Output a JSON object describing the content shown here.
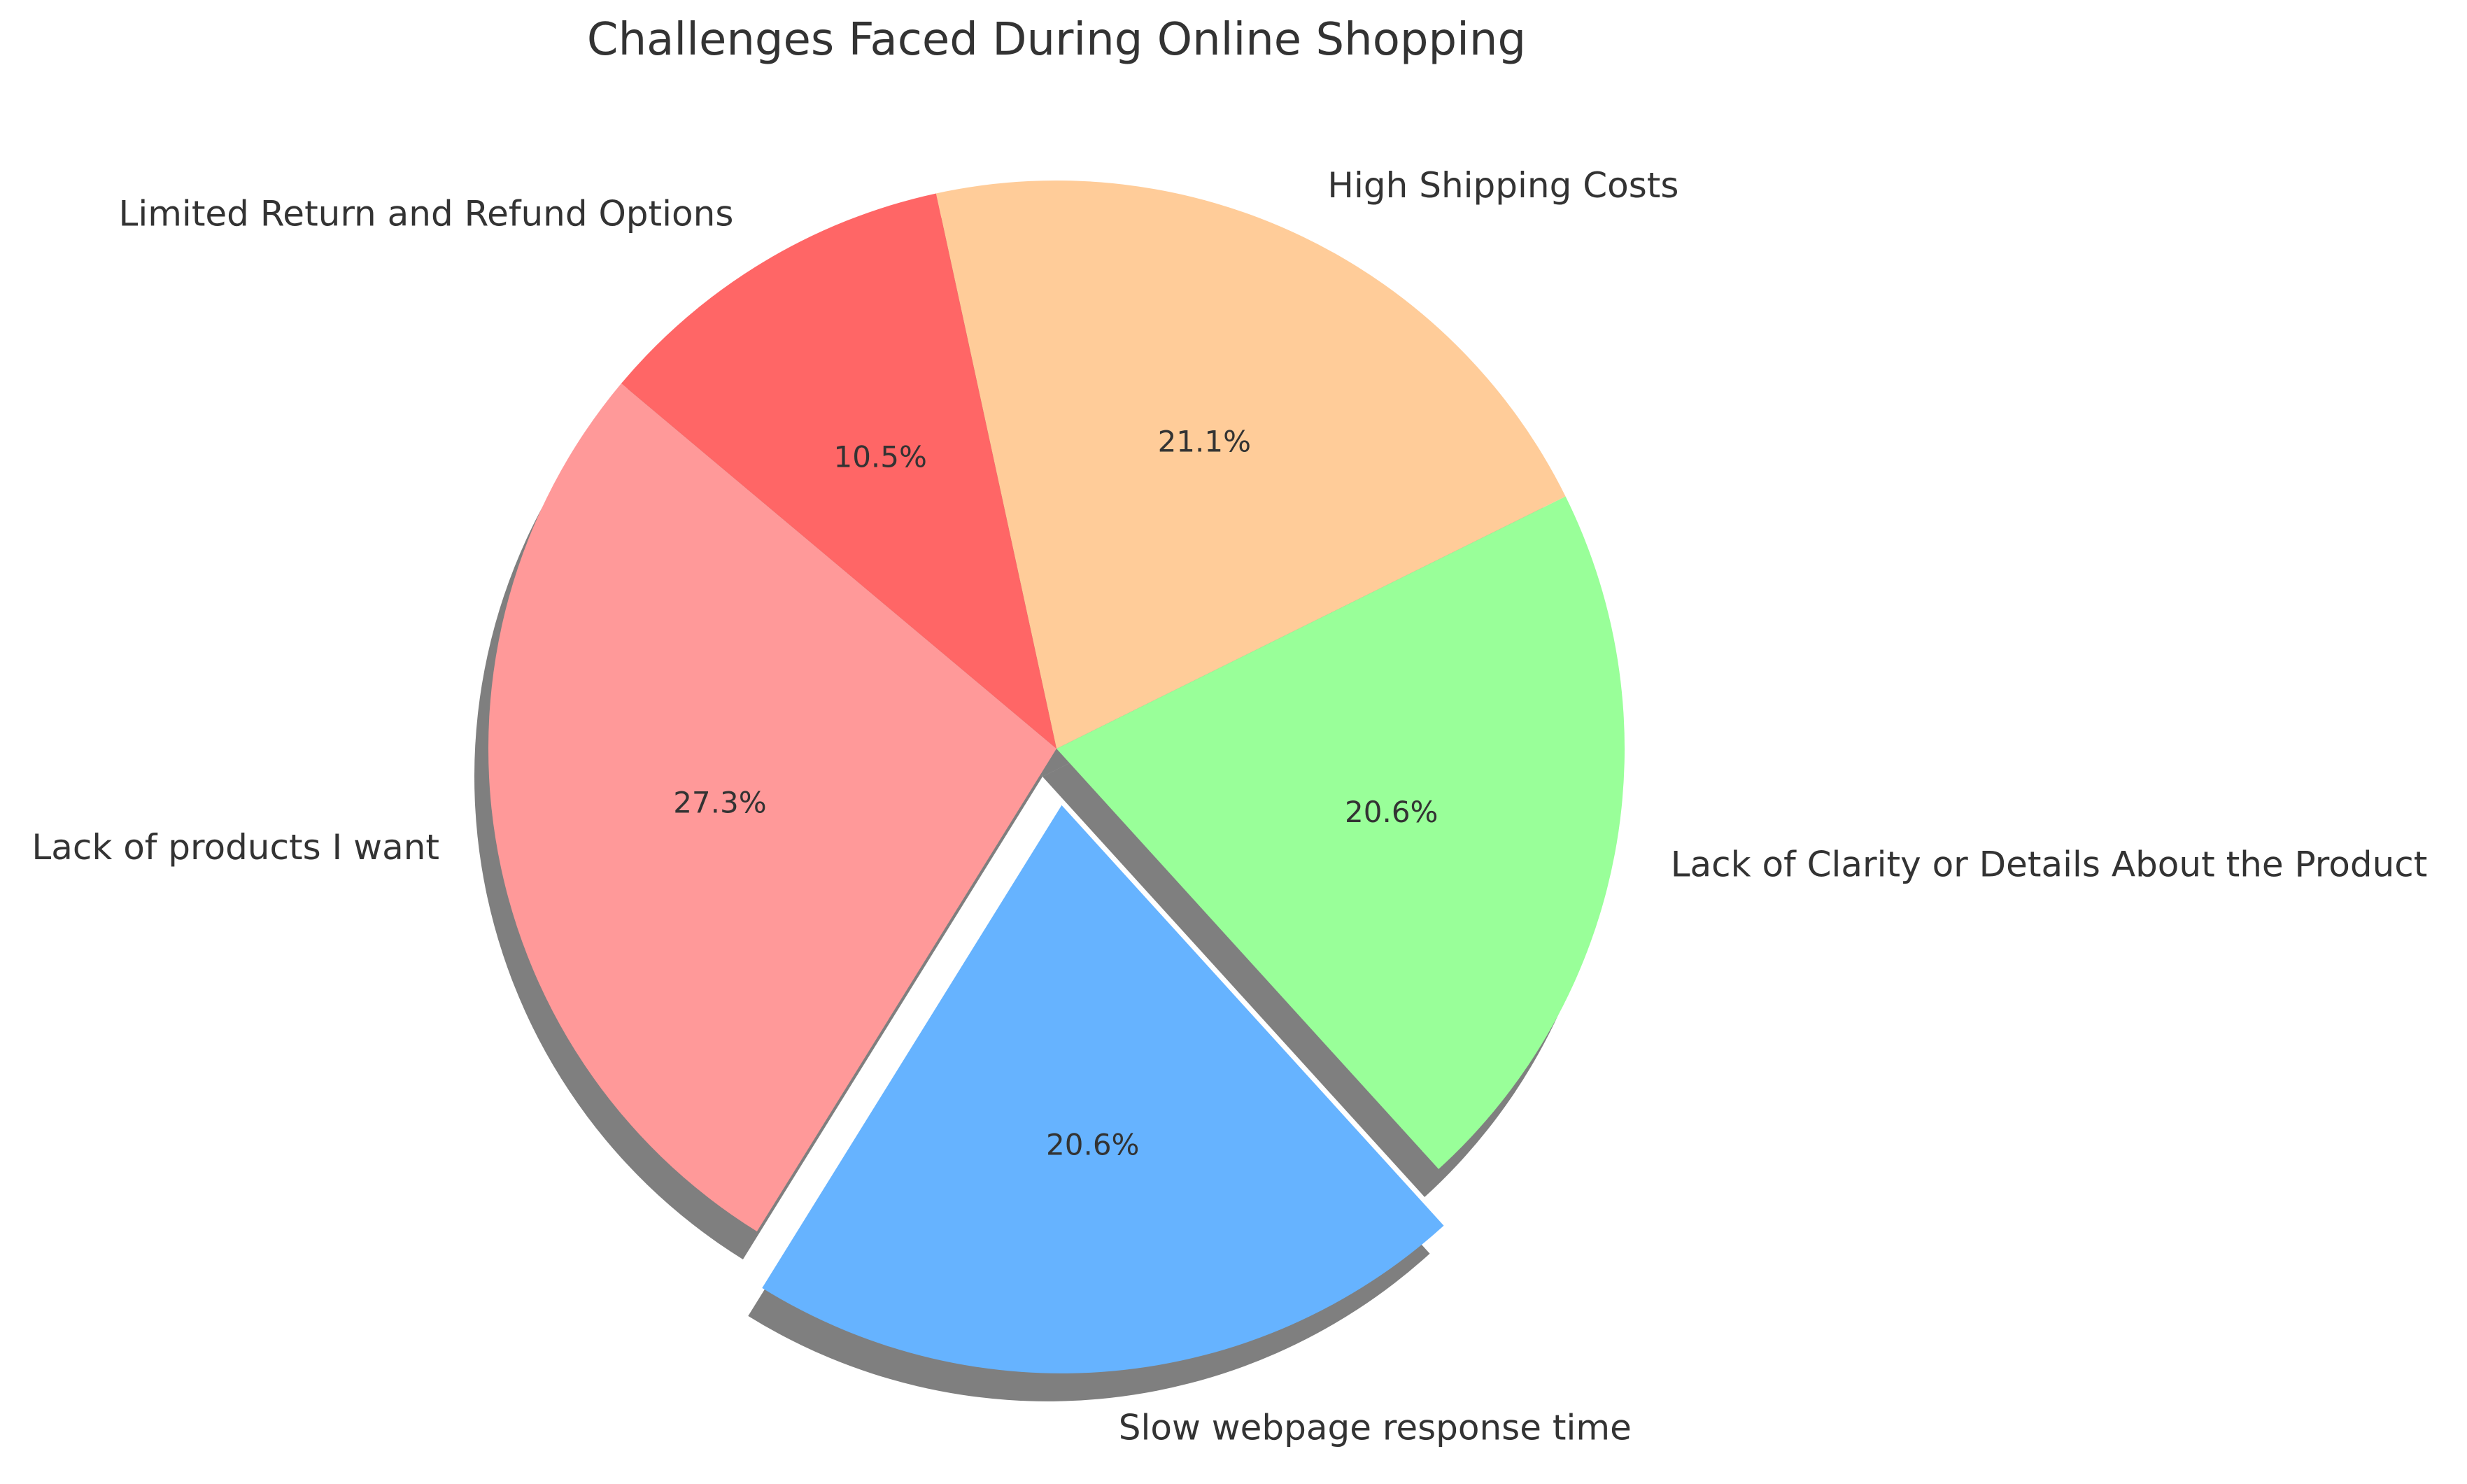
{
  "chart_data": {
    "type": "pie",
    "title": "Challenges Faced During Online Shopping",
    "slices": [
      {
        "label": "Lack of products I want",
        "value": 27.3,
        "pct_label": "27.3%",
        "color": "#ff9999",
        "exploded": false
      },
      {
        "label": "Slow webpage response time",
        "value": 20.6,
        "pct_label": "20.6%",
        "color": "#66b3ff",
        "exploded": true
      },
      {
        "label": "Lack of Clarity or Details About the Product",
        "value": 20.6,
        "pct_label": "20.6%",
        "color": "#99ff99",
        "exploded": false
      },
      {
        "label": "High Shipping Costs",
        "value": 21.1,
        "pct_label": "21.1%",
        "color": "#ffcc99",
        "exploded": false
      },
      {
        "label": "Limited Return and Refund Options",
        "value": 10.5,
        "pct_label": "10.5%",
        "color": "#ff6666",
        "exploded": false
      }
    ],
    "shadow": true,
    "legend": "none",
    "start_angle_deg": 140,
    "direction": "counterclockwise"
  }
}
